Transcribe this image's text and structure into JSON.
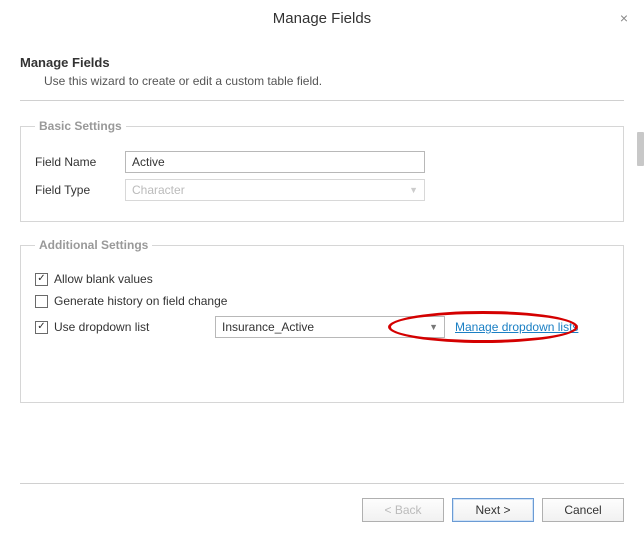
{
  "dialog": {
    "title": "Manage Fields",
    "close_glyph": "×"
  },
  "wizard": {
    "heading": "Manage Fields",
    "subtext": "Use this wizard to create or edit a custom table field."
  },
  "basic": {
    "legend": "Basic Settings",
    "field_name_label": "Field Name",
    "field_name_value": "Active",
    "field_type_label": "Field Type",
    "field_type_value": "Character"
  },
  "additional": {
    "legend": "Additional Settings",
    "allow_blank": {
      "label": "Allow blank values",
      "checked_glyph": "✓"
    },
    "gen_history": {
      "label": "Generate history on field change",
      "checked_glyph": ""
    },
    "use_dropdown": {
      "label": "Use dropdown list",
      "checked_glyph": "✓"
    },
    "dropdown_value": "Insurance_Active",
    "manage_link": "Manage dropdown lists"
  },
  "buttons": {
    "back": "< Back",
    "next": "Next >",
    "cancel": "Cancel"
  },
  "colors": {
    "link": "#1a7fc4",
    "annotation": "#d40000",
    "border": "#d6d6d6"
  }
}
